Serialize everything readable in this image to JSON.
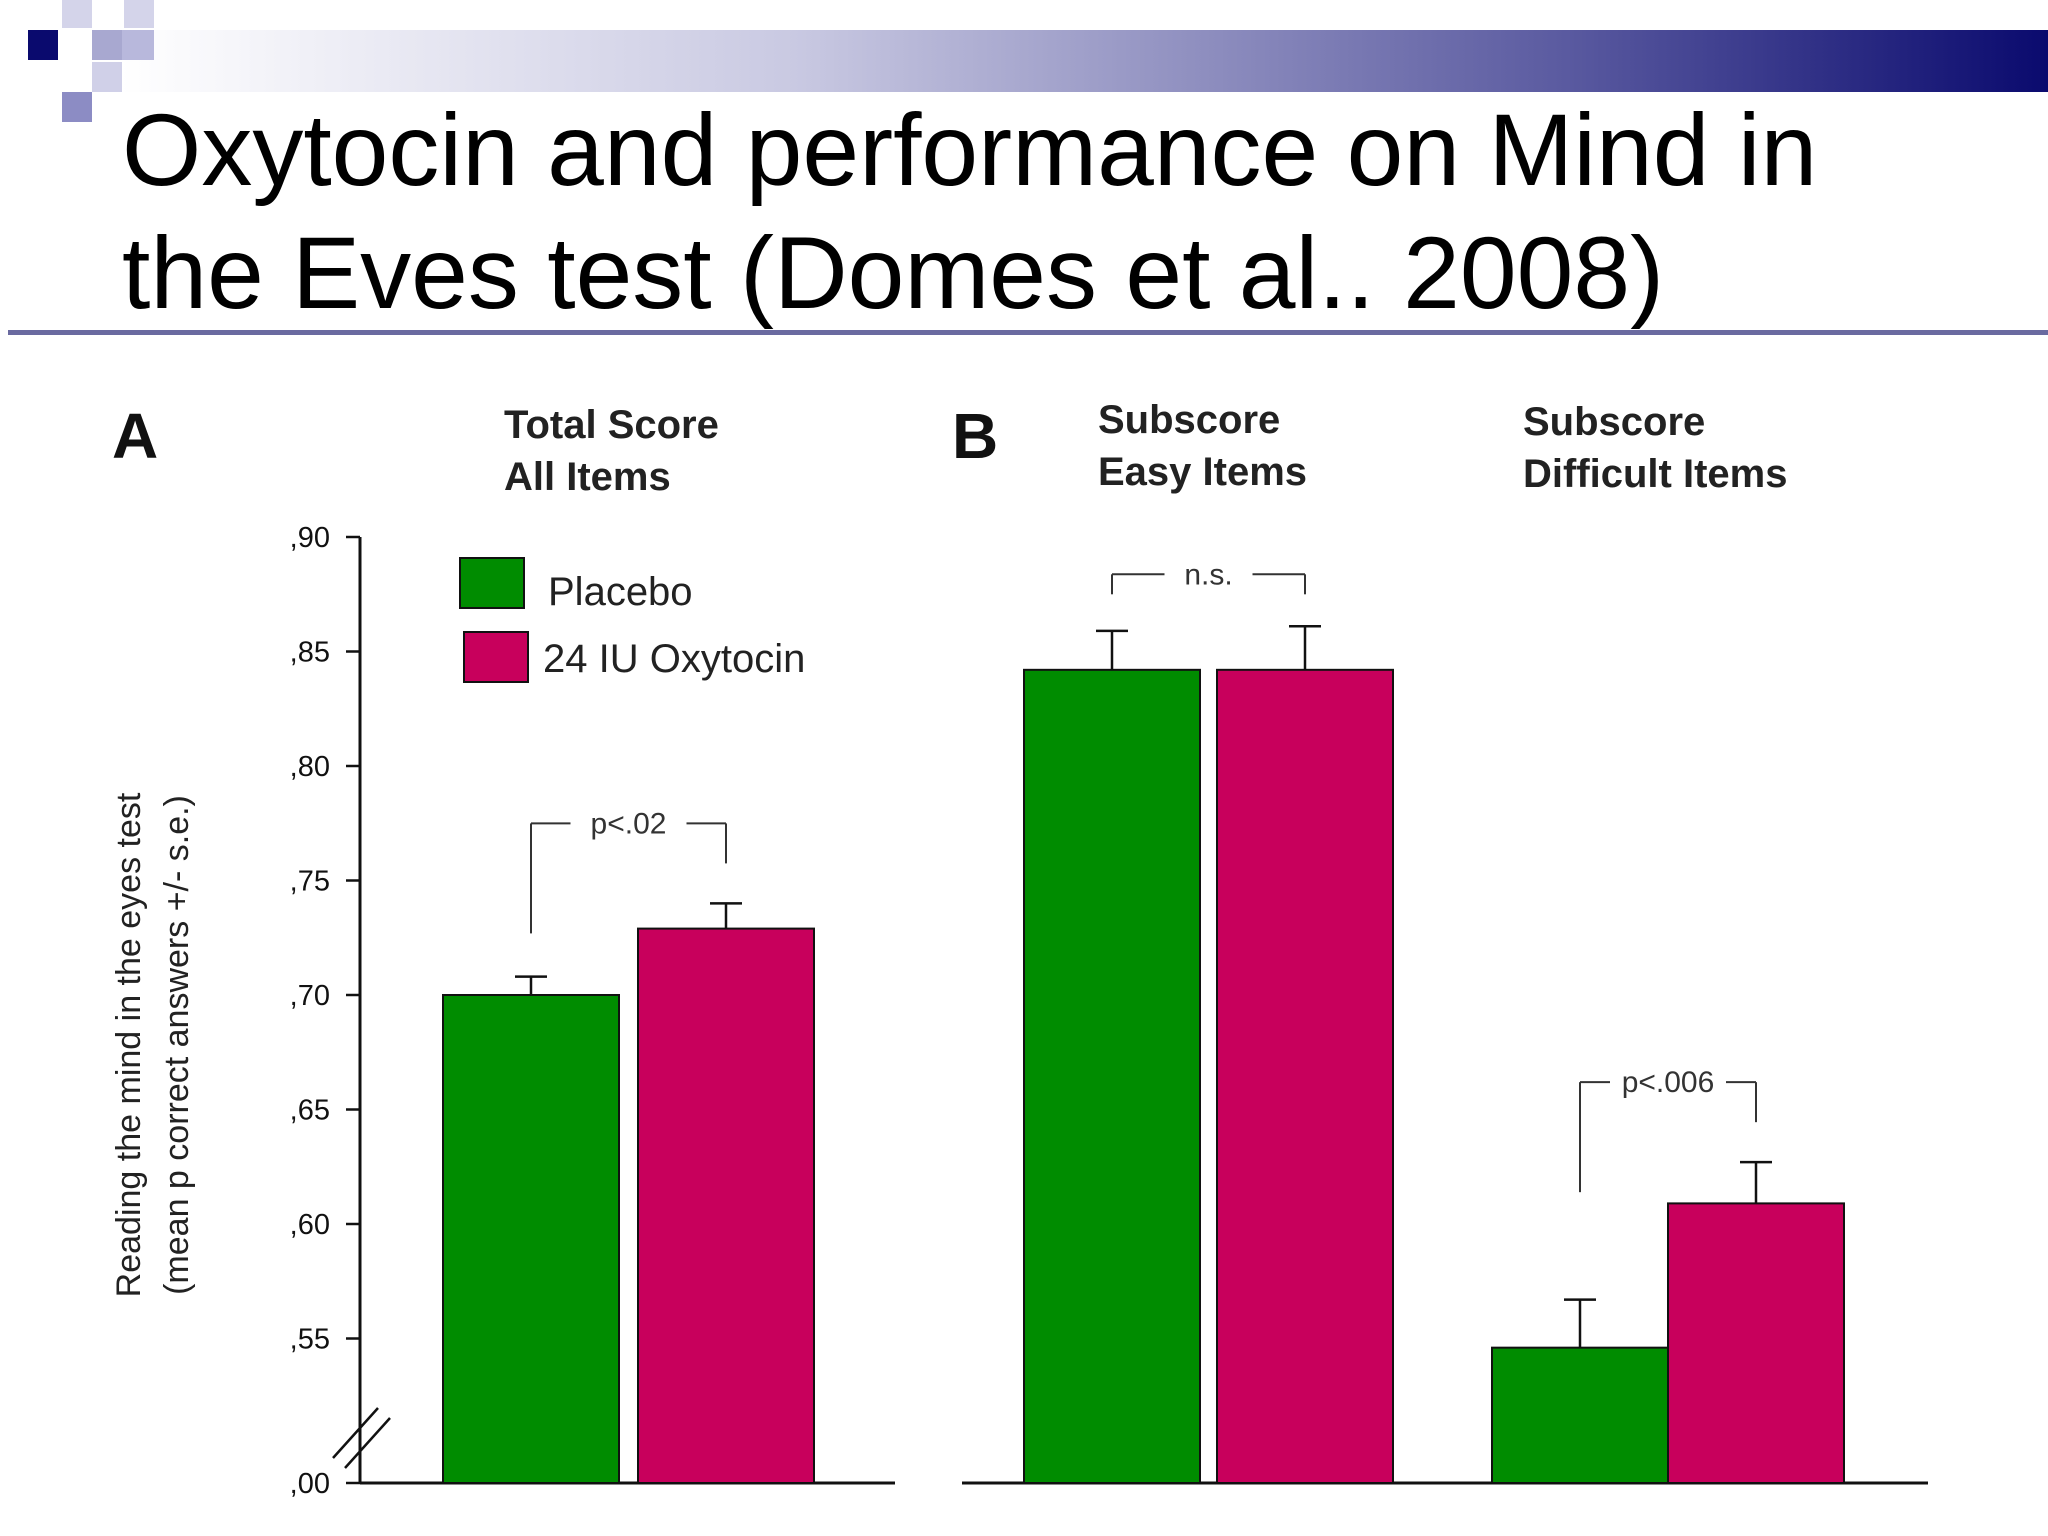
{
  "slide": {
    "title_line1": "Oxytocin and performance on Mind in",
    "title_line2": "the Eves test (Domes et al.. 2008)"
  },
  "colors": {
    "placebo": "#008c00",
    "oxytocin": "#c8005c",
    "accent_navy": "#0a0a6e",
    "title_rule": "#6a6aa0"
  },
  "chart_data": {
    "type": "bar",
    "ylabel_line1": "Reading the mind in the eyes test",
    "ylabel_line2": "(mean p correct answers +/- s.e.)",
    "yticks": [
      ",90",
      ",85",
      ",80",
      ",75",
      ",70",
      ",65",
      ",60",
      ",55",
      ",00"
    ],
    "ylim": [
      0.52,
      0.9
    ],
    "axis_break": true,
    "grid": false,
    "legend_position": "top-left",
    "panels": [
      {
        "letter": "A",
        "groups": [
          {
            "label_line1": "Total Score",
            "label_line2": "All Items",
            "placebo": 0.7,
            "placebo_se": 0.008,
            "oxytocin": 0.729,
            "oxytocin_se": 0.011,
            "significance": "p<.02"
          }
        ]
      },
      {
        "letter": "B",
        "groups": [
          {
            "label_line1": "Subscore",
            "label_line2": "Easy Items",
            "placebo": 0.842,
            "placebo_se": 0.017,
            "oxytocin": 0.842,
            "oxytocin_se": 0.019,
            "significance": "n.s."
          },
          {
            "label_line1": "Subscore",
            "label_line2": "Difficult Items",
            "placebo": 0.546,
            "placebo_se": 0.021,
            "oxytocin": 0.609,
            "oxytocin_se": 0.018,
            "significance": "p<.006"
          }
        ]
      }
    ],
    "series": [
      {
        "name": "Placebo"
      },
      {
        "name": "24 IU Oxytocin"
      }
    ]
  }
}
